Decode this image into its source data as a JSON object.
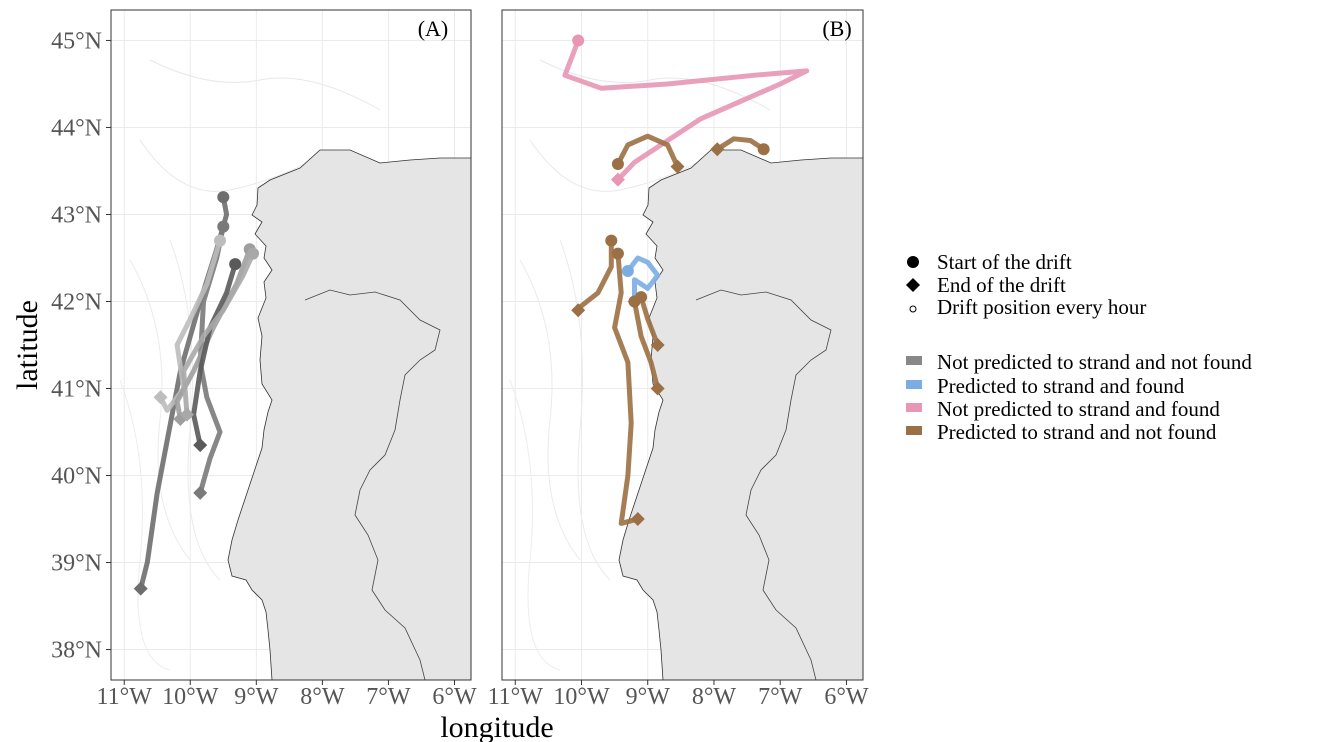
{
  "chart_data": {
    "type": "map",
    "xlabel": "longitude",
    "ylabel": "latitude",
    "xlim": [
      -11.2,
      -5.75
    ],
    "ylim": [
      37.65,
      45.35
    ],
    "x_ticks": [
      -11,
      -10,
      -9,
      -8,
      -7,
      -6
    ],
    "x_tick_labels": [
      "11°W",
      "10°W",
      "9°W",
      "8°W",
      "7°W",
      "6°W"
    ],
    "y_ticks": [
      38,
      39,
      40,
      41,
      42,
      43,
      44,
      45
    ],
    "y_tick_labels": [
      "38°N",
      "39°N",
      "40°N",
      "41°N",
      "42°N",
      "43°N",
      "44°N",
      "45°N"
    ],
    "grid": true,
    "legend_position": "right",
    "shape_legend": [
      {
        "shape": "circle",
        "label": "Start of the drift"
      },
      {
        "shape": "diamond",
        "label": "End of the drift"
      },
      {
        "shape": "small-circle",
        "label": "Drift position every hour"
      }
    ],
    "color_legend": [
      {
        "label": "Not predicted to strand and not found",
        "color": "#888888"
      },
      {
        "label": "Predicted to strand and found",
        "color": "#7aaee3"
      },
      {
        "label": "Not predicted to strand and found",
        "color": "#e796b4"
      },
      {
        "label": "Predicted to strand and not found",
        "color": "#9b7044"
      }
    ],
    "land_color": "#e5e5e5",
    "panels": [
      {
        "label": "(A)",
        "tracks": [
          {
            "color": "#6e6e6e",
            "points": [
              [
                -9.5,
                43.2
              ],
              [
                -9.45,
                43.0
              ],
              [
                -9.6,
                42.6
              ],
              [
                -9.85,
                42.0
              ],
              [
                -10.15,
                41.2
              ],
              [
                -10.5,
                39.8
              ],
              [
                -10.65,
                39.0
              ],
              [
                -10.75,
                38.7
              ]
            ]
          },
          {
            "color": "#7a7a7a",
            "points": [
              [
                -9.5,
                42.86
              ],
              [
                -9.6,
                42.5
              ],
              [
                -9.8,
                42.0
              ],
              [
                -9.85,
                41.3
              ],
              [
                -9.75,
                40.9
              ],
              [
                -9.55,
                40.5
              ],
              [
                -9.7,
                40.2
              ],
              [
                -9.85,
                39.8
              ]
            ]
          },
          {
            "color": "#bdbdbd",
            "points": [
              [
                -9.55,
                42.7
              ],
              [
                -9.75,
                42.2
              ],
              [
                -10.0,
                41.8
              ],
              [
                -10.2,
                41.5
              ],
              [
                -10.1,
                41.0
              ],
              [
                -10.35,
                40.75
              ],
              [
                -10.45,
                40.9
              ]
            ]
          },
          {
            "color": "#9e9e9e",
            "points": [
              [
                -9.1,
                42.6
              ],
              [
                -9.3,
                42.2
              ],
              [
                -9.65,
                41.7
              ],
              [
                -9.95,
                41.2
              ],
              [
                -10.2,
                40.85
              ],
              [
                -10.15,
                40.65
              ]
            ]
          },
          {
            "color": "#5a5a5a",
            "points": [
              [
                -9.32,
                42.43
              ],
              [
                -9.45,
                42.1
              ],
              [
                -9.7,
                41.7
              ],
              [
                -9.85,
                41.2
              ],
              [
                -9.95,
                40.7
              ],
              [
                -9.85,
                40.35
              ]
            ]
          },
          {
            "color": "#a8a8a8",
            "points": [
              [
                -9.05,
                42.55
              ],
              [
                -9.2,
                42.3
              ],
              [
                -9.5,
                41.9
              ],
              [
                -9.8,
                41.6
              ],
              [
                -10.1,
                41.2
              ],
              [
                -10.05,
                40.7
              ]
            ]
          }
        ]
      },
      {
        "label": "(B)",
        "tracks": [
          {
            "color": "#e796b4",
            "points": [
              [
                -10.05,
                45.0
              ],
              [
                -10.25,
                44.6
              ],
              [
                -9.7,
                44.45
              ],
              [
                -8.7,
                44.5
              ],
              [
                -7.4,
                44.6
              ],
              [
                -6.6,
                44.65
              ],
              [
                -7.0,
                44.5
              ],
              [
                -8.2,
                44.1
              ],
              [
                -9.2,
                43.6
              ],
              [
                -9.45,
                43.4
              ]
            ]
          },
          {
            "color": "#9b7044",
            "points": [
              [
                -9.45,
                43.58
              ],
              [
                -9.3,
                43.8
              ],
              [
                -9.0,
                43.9
              ],
              [
                -8.7,
                43.8
              ],
              [
                -8.55,
                43.55
              ]
            ]
          },
          {
            "color": "#9b7044",
            "points": [
              [
                -7.25,
                43.75
              ],
              [
                -7.45,
                43.85
              ],
              [
                -7.7,
                43.87
              ],
              [
                -7.95,
                43.75
              ]
            ]
          },
          {
            "color": "#7aaee3",
            "points": [
              [
                -9.3,
                42.35
              ],
              [
                -9.15,
                42.5
              ],
              [
                -9.0,
                42.45
              ],
              [
                -8.85,
                42.3
              ],
              [
                -9.0,
                42.15
              ],
              [
                -9.2,
                42.25
              ],
              [
                -9.2,
                42.0
              ]
            ]
          },
          {
            "color": "#9b7044",
            "points": [
              [
                -9.55,
                42.7
              ],
              [
                -9.55,
                42.4
              ],
              [
                -9.75,
                42.1
              ],
              [
                -10.0,
                41.95
              ],
              [
                -10.05,
                41.9
              ]
            ]
          },
          {
            "color": "#9b7044",
            "points": [
              [
                -9.45,
                42.55
              ],
              [
                -9.4,
                42.1
              ],
              [
                -9.5,
                41.7
              ],
              [
                -9.3,
                41.3
              ],
              [
                -9.25,
                40.6
              ],
              [
                -9.3,
                40.0
              ],
              [
                -9.4,
                39.45
              ],
              [
                -9.15,
                39.5
              ]
            ]
          },
          {
            "color": "#9b7044",
            "points": [
              [
                -9.2,
                42.0
              ],
              [
                -9.1,
                41.6
              ],
              [
                -8.95,
                41.3
              ],
              [
                -8.85,
                41.0
              ]
            ]
          },
          {
            "color": "#9b7044",
            "points": [
              [
                -9.1,
                42.05
              ],
              [
                -9.0,
                41.8
              ],
              [
                -8.85,
                41.5
              ]
            ]
          }
        ]
      }
    ]
  }
}
